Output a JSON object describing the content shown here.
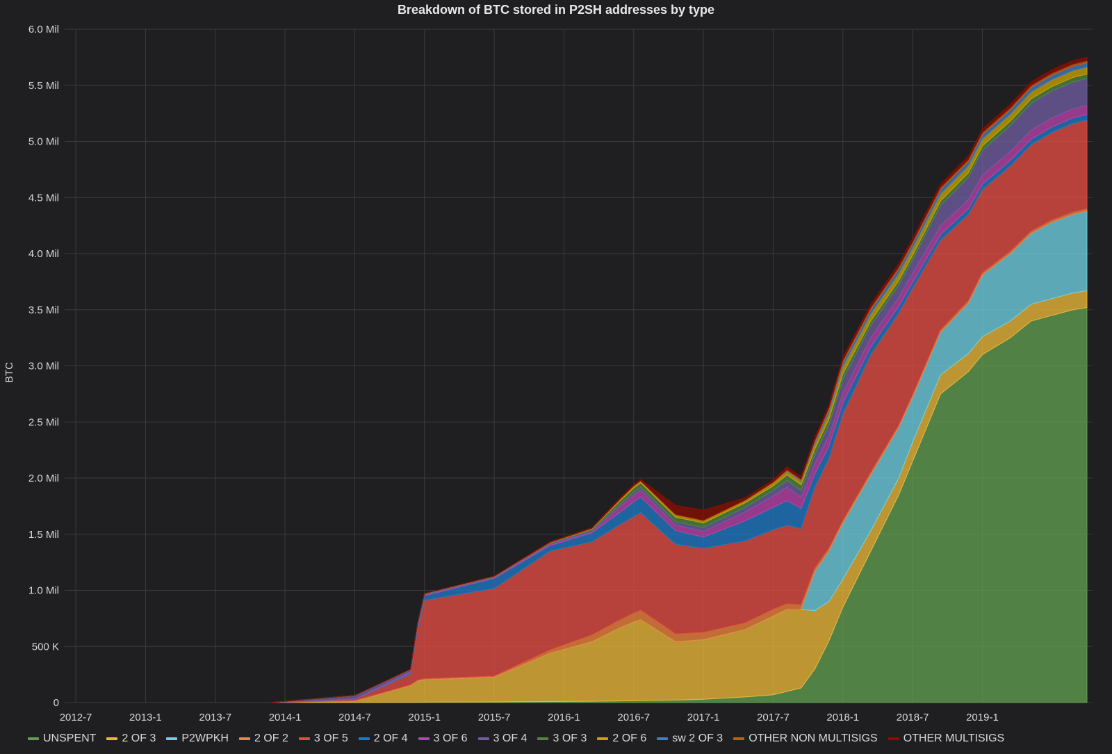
{
  "chart_data": {
    "type": "area",
    "stacked": true,
    "title": "Breakdown of BTC stored in P2SH addresses by type",
    "xlabel": "",
    "ylabel": "BTC",
    "ylim": [
      0,
      6000000
    ],
    "y_ticks": [
      {
        "value": 0,
        "label": "0"
      },
      {
        "value": 500000,
        "label": "500 K"
      },
      {
        "value": 1000000,
        "label": "1.0 Mil"
      },
      {
        "value": 1500000,
        "label": "1.5 Mil"
      },
      {
        "value": 2000000,
        "label": "2.0 Mil"
      },
      {
        "value": 2500000,
        "label": "2.5 Mil"
      },
      {
        "value": 3000000,
        "label": "3.0 Mil"
      },
      {
        "value": 3500000,
        "label": "3.5 Mil"
      },
      {
        "value": 4000000,
        "label": "4.0 Mil"
      },
      {
        "value": 4500000,
        "label": "4.5 Mil"
      },
      {
        "value": 5000000,
        "label": "5.0 Mil"
      },
      {
        "value": 5500000,
        "label": "5.5 Mil"
      },
      {
        "value": 6000000,
        "label": "6.0 Mil"
      }
    ],
    "x_range_months": [
      2012.42,
      2019.79
    ],
    "x_ticks": [
      {
        "value": 2012.5,
        "label": "2012-7"
      },
      {
        "value": 2013.0,
        "label": "2013-1"
      },
      {
        "value": 2013.5,
        "label": "2013-7"
      },
      {
        "value": 2014.0,
        "label": "2014-1"
      },
      {
        "value": 2014.5,
        "label": "2014-7"
      },
      {
        "value": 2015.0,
        "label": "2015-1"
      },
      {
        "value": 2015.5,
        "label": "2015-7"
      },
      {
        "value": 2016.0,
        "label": "2016-1"
      },
      {
        "value": 2016.5,
        "label": "2016-7"
      },
      {
        "value": 2017.0,
        "label": "2017-1"
      },
      {
        "value": 2017.5,
        "label": "2017-7"
      },
      {
        "value": 2018.0,
        "label": "2018-1"
      },
      {
        "value": 2018.5,
        "label": "2018-7"
      },
      {
        "value": 2019.0,
        "label": "2019-1"
      }
    ],
    "x": [
      2013.9,
      2014.5,
      2014.9,
      2014.95,
      2015.0,
      2015.5,
      2015.9,
      2016.2,
      2016.4,
      2016.5,
      2016.55,
      2016.8,
      2017.0,
      2017.3,
      2017.5,
      2017.6,
      2017.7,
      2017.8,
      2017.9,
      2018.0,
      2018.2,
      2018.4,
      2018.5,
      2018.7,
      2018.9,
      2019.0,
      2019.2,
      2019.35,
      2019.5,
      2019.65,
      2019.75
    ],
    "series": [
      {
        "name": "UNSPENT",
        "color": "#629e51",
        "values": [
          0,
          0,
          2000,
          3000,
          4000,
          6000,
          9000,
          12000,
          15000,
          17000,
          18000,
          22000,
          30000,
          50000,
          70000,
          100000,
          130000,
          300000,
          550000,
          850000,
          1350000,
          1850000,
          2150000,
          2750000,
          2950000,
          3100000,
          3250000,
          3400000,
          3450000,
          3500000,
          3520000
        ]
      },
      {
        "name": "2 OF 3",
        "color": "#eab839",
        "values": [
          0,
          15000,
          150000,
          190000,
          200000,
          220000,
          430000,
          530000,
          650000,
          700000,
          720000,
          520000,
          530000,
          600000,
          700000,
          730000,
          700000,
          520000,
          350000,
          250000,
          180000,
          150000,
          170000,
          170000,
          160000,
          160000,
          150000,
          150000,
          150000,
          150000,
          150000
        ]
      },
      {
        "name": "P2WPKH",
        "color": "#6ed0e0",
        "values": [
          0,
          0,
          0,
          0,
          0,
          0,
          0,
          0,
          0,
          0,
          0,
          0,
          0,
          0,
          0,
          0,
          0,
          350000,
          450000,
          500000,
          500000,
          450000,
          400000,
          380000,
          450000,
          550000,
          600000,
          630000,
          680000,
          700000,
          710000
        ]
      },
      {
        "name": "2 OF 2",
        "color": "#ef843c",
        "values": [
          0,
          2000,
          5000,
          6000,
          8000,
          10000,
          30000,
          60000,
          70000,
          80000,
          85000,
          70000,
          65000,
          60000,
          60000,
          50000,
          40000,
          30000,
          25000,
          20000,
          20000,
          20000,
          20000,
          20000,
          20000,
          20000,
          20000,
          20000,
          20000,
          20000,
          20000
        ]
      },
      {
        "name": "3 OF 5",
        "color": "#e24d42",
        "values": [
          0,
          10000,
          100000,
          450000,
          700000,
          780000,
          880000,
          830000,
          850000,
          860000,
          870000,
          800000,
          750000,
          730000,
          710000,
          700000,
          680000,
          720000,
          800000,
          950000,
          1050000,
          1000000,
          950000,
          800000,
          770000,
          740000,
          760000,
          770000,
          780000,
          790000,
          790000
        ]
      },
      {
        "name": "2 OF 4",
        "color": "#1f78c1",
        "values": [
          0,
          3000,
          10000,
          20000,
          40000,
          90000,
          50000,
          80000,
          110000,
          130000,
          140000,
          120000,
          100000,
          180000,
          200000,
          220000,
          180000,
          120000,
          110000,
          100000,
          70000,
          60000,
          55000,
          50000,
          50000,
          50000,
          50000,
          50000,
          50000,
          50000,
          50000
        ]
      },
      {
        "name": "3 OF 6",
        "color": "#ba43a9",
        "values": [
          0,
          2000,
          5000,
          5000,
          5000,
          5000,
          10000,
          10000,
          50000,
          60000,
          60000,
          50000,
          50000,
          80000,
          100000,
          120000,
          100000,
          90000,
          90000,
          90000,
          80000,
          80000,
          80000,
          80000,
          80000,
          80000,
          80000,
          80000,
          80000,
          80000,
          80000
        ]
      },
      {
        "name": "3 OF 4",
        "color": "#705da0",
        "values": [
          0,
          30000,
          20000,
          20000,
          10000,
          10000,
          10000,
          15000,
          20000,
          25000,
          25000,
          30000,
          35000,
          40000,
          50000,
          60000,
          60000,
          80000,
          100000,
          120000,
          110000,
          110000,
          120000,
          180000,
          200000,
          220000,
          230000,
          240000,
          240000,
          240000,
          240000
        ]
      },
      {
        "name": "3 OF 3",
        "color": "#508642",
        "values": [
          0,
          1000,
          2000,
          2000,
          2000,
          3000,
          5000,
          10000,
          30000,
          40000,
          40000,
          40000,
          40000,
          40000,
          40000,
          50000,
          50000,
          50000,
          50000,
          50000,
          40000,
          40000,
          40000,
          40000,
          40000,
          40000,
          40000,
          40000,
          40000,
          40000,
          40000
        ]
      },
      {
        "name": "2 OF 6",
        "color": "#cca300",
        "values": [
          0,
          0,
          1000,
          1000,
          1000,
          1000,
          2000,
          3000,
          10000,
          15000,
          15000,
          20000,
          20000,
          20000,
          30000,
          30000,
          30000,
          40000,
          50000,
          60000,
          60000,
          60000,
          60000,
          60000,
          60000,
          60000,
          60000,
          60000,
          60000,
          60000,
          60000
        ]
      },
      {
        "name": "sw 2 OF 3",
        "color": "#447ebc",
        "values": [
          0,
          0,
          0,
          0,
          0,
          0,
          0,
          0,
          0,
          0,
          0,
          0,
          0,
          0,
          0,
          5000,
          10000,
          20000,
          30000,
          40000,
          40000,
          40000,
          40000,
          40000,
          40000,
          40000,
          40000,
          40000,
          40000,
          40000,
          40000
        ]
      },
      {
        "name": "OTHER NON MULTISIGS",
        "color": "#c15c17",
        "values": [
          0,
          0,
          1000,
          1000,
          1000,
          1000,
          2000,
          3000,
          5000,
          5000,
          5000,
          5000,
          5000,
          5000,
          5000,
          10000,
          10000,
          20000,
          20000,
          20000,
          20000,
          20000,
          20000,
          20000,
          20000,
          20000,
          20000,
          20000,
          20000,
          20000,
          20000
        ]
      },
      {
        "name": "OTHER MULTISIGS",
        "color": "#890f02",
        "values": [
          0,
          0,
          2000,
          2000,
          2000,
          2000,
          5000,
          5000,
          10000,
          10000,
          10000,
          80000,
          90000,
          20000,
          20000,
          25000,
          25000,
          25000,
          25000,
          30000,
          30000,
          30000,
          30000,
          30000,
          30000,
          30000,
          30000,
          30000,
          30000,
          30000,
          30000
        ]
      }
    ]
  }
}
